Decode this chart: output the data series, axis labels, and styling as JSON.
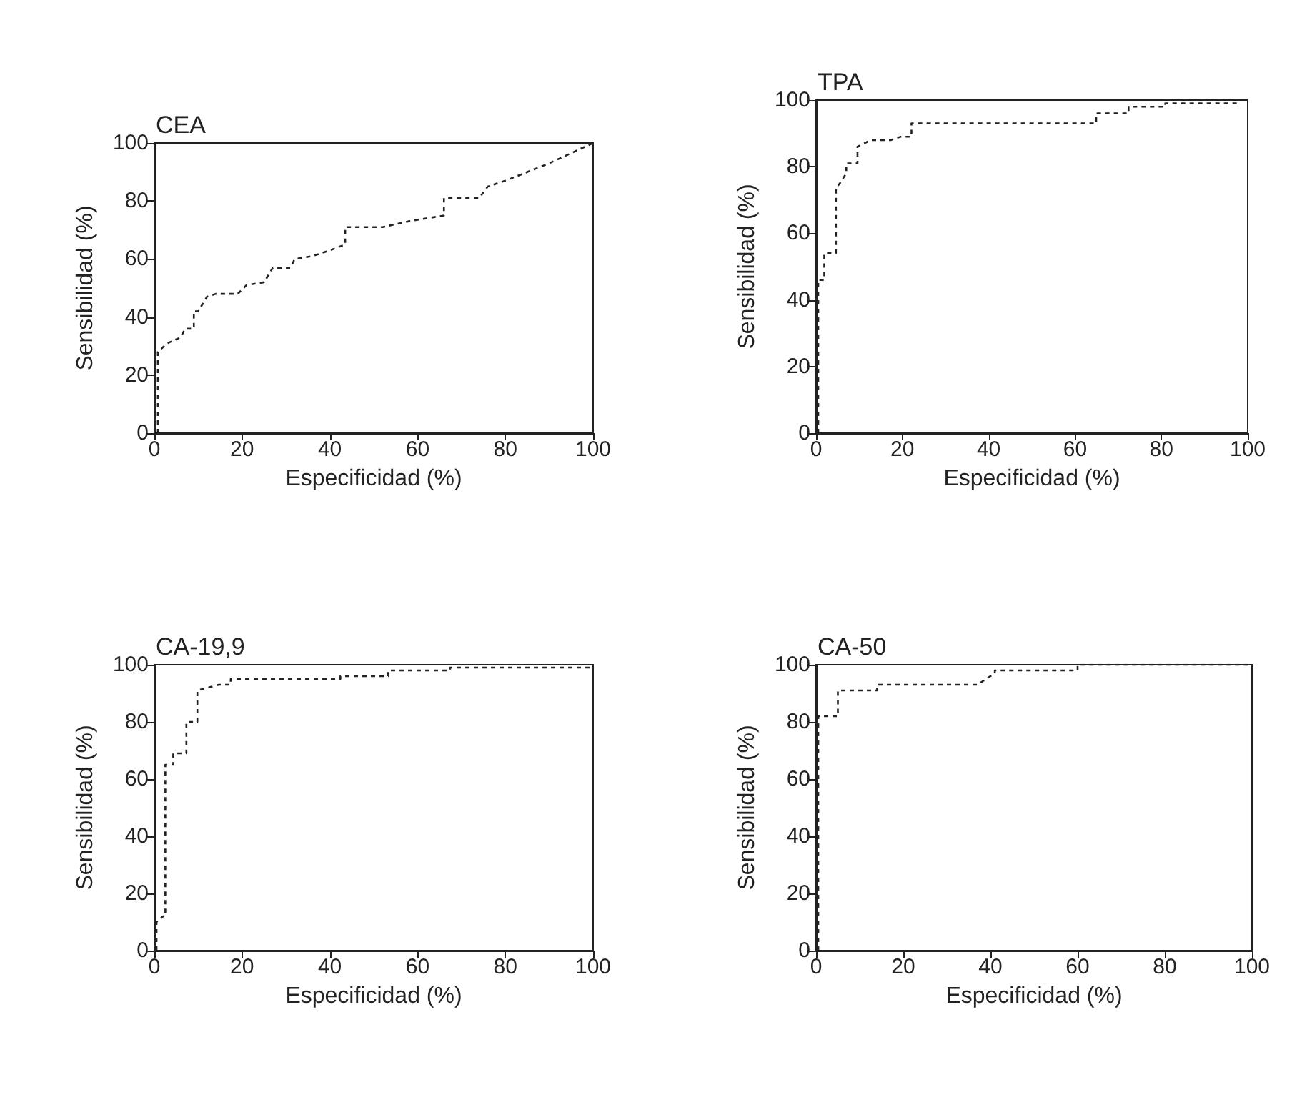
{
  "chart_data": [
    {
      "type": "line",
      "title": "CEA",
      "xlabel": "Especificidad (%)",
      "ylabel": "Sensibilidad (%)",
      "xlim": [
        0,
        100
      ],
      "ylim": [
        0,
        100
      ],
      "xticks": [
        0,
        20,
        40,
        60,
        80,
        100
      ],
      "yticks": [
        0,
        20,
        40,
        60,
        80,
        100
      ],
      "grid": false,
      "marker": "none",
      "line_style": "dashed",
      "series": [
        {
          "color": "#222222",
          "x": [
            0.8,
            0.8,
            3,
            6,
            7,
            9,
            9,
            10,
            12,
            14,
            19,
            21,
            25,
            27,
            31,
            32,
            36,
            40,
            43.5,
            43.5,
            52,
            58,
            66,
            66,
            74,
            76,
            80,
            90,
            100
          ],
          "values": [
            0,
            28,
            31,
            33,
            36,
            36,
            42,
            42,
            47,
            48,
            48,
            51,
            52,
            57,
            57,
            60,
            61,
            63,
            65,
            71,
            71,
            73,
            75,
            81,
            81,
            85,
            87,
            93,
            100
          ]
        }
      ]
    },
    {
      "type": "line",
      "title": "TPA",
      "xlabel": "Especificidad (%)",
      "ylabel": "Sensibilidad (%)",
      "xlim": [
        0,
        100
      ],
      "ylim": [
        0,
        100
      ],
      "xticks": [
        0,
        20,
        40,
        60,
        80,
        100
      ],
      "yticks": [
        0,
        20,
        40,
        60,
        80,
        100
      ],
      "grid": false,
      "marker": "none",
      "line_style": "dashed",
      "series": [
        {
          "color": "#222222",
          "x": [
            0.5,
            0.5,
            1.9,
            1.9,
            4.6,
            4.6,
            5.5,
            7,
            7,
            9.6,
            9.6,
            12.7,
            17.3,
            19.6,
            22.1,
            22.1,
            64.9,
            64.9,
            72.4,
            72.4,
            80.9,
            80.9,
            98
          ],
          "values": [
            0,
            46,
            46,
            54,
            54,
            73.5,
            75,
            78,
            81,
            81,
            86,
            88,
            88,
            89,
            89,
            93,
            93,
            96,
            96,
            98,
            98,
            99,
            99
          ]
        }
      ]
    },
    {
      "type": "line",
      "title": "CA-19,9",
      "xlabel": "Especificidad (%)",
      "ylabel": "Sensibilidad (%)",
      "xlim": [
        0,
        100
      ],
      "ylim": [
        0,
        100
      ],
      "xticks": [
        0,
        20,
        40,
        60,
        80,
        100
      ],
      "yticks": [
        0,
        20,
        40,
        60,
        80,
        100
      ],
      "grid": false,
      "marker": "none",
      "line_style": "dashed",
      "series": [
        {
          "color": "#222222",
          "x": [
            0.5,
            0.5,
            2,
            2.5,
            2.5,
            4.3,
            4.3,
            7.3,
            7.3,
            9.8,
            9.8,
            14.7,
            17.4,
            17.4,
            42.4,
            42.4,
            53.3,
            53.3,
            67.4,
            67.4,
            100
          ],
          "values": [
            0,
            10,
            12,
            12,
            65,
            65,
            69,
            69,
            80,
            80,
            91,
            93,
            93,
            95,
            95,
            96,
            96,
            98,
            98,
            99,
            99
          ]
        }
      ]
    },
    {
      "type": "line",
      "title": "CA-50",
      "xlabel": "Especificidad (%)",
      "ylabel": "Sensibilidad (%)",
      "xlim": [
        0,
        100
      ],
      "ylim": [
        0,
        100
      ],
      "xticks": [
        0,
        20,
        40,
        60,
        80,
        100
      ],
      "yticks": [
        0,
        20,
        40,
        60,
        80,
        100
      ],
      "grid": false,
      "marker": "none",
      "line_style": "dashed",
      "series": [
        {
          "color": "#222222",
          "x": [
            0.5,
            0.5,
            5,
            5,
            14,
            14,
            37,
            41,
            41,
            60,
            60,
            100
          ],
          "values": [
            0,
            82,
            82,
            91,
            91,
            93,
            93,
            97,
            98,
            98,
            100,
            100
          ]
        }
      ]
    }
  ]
}
